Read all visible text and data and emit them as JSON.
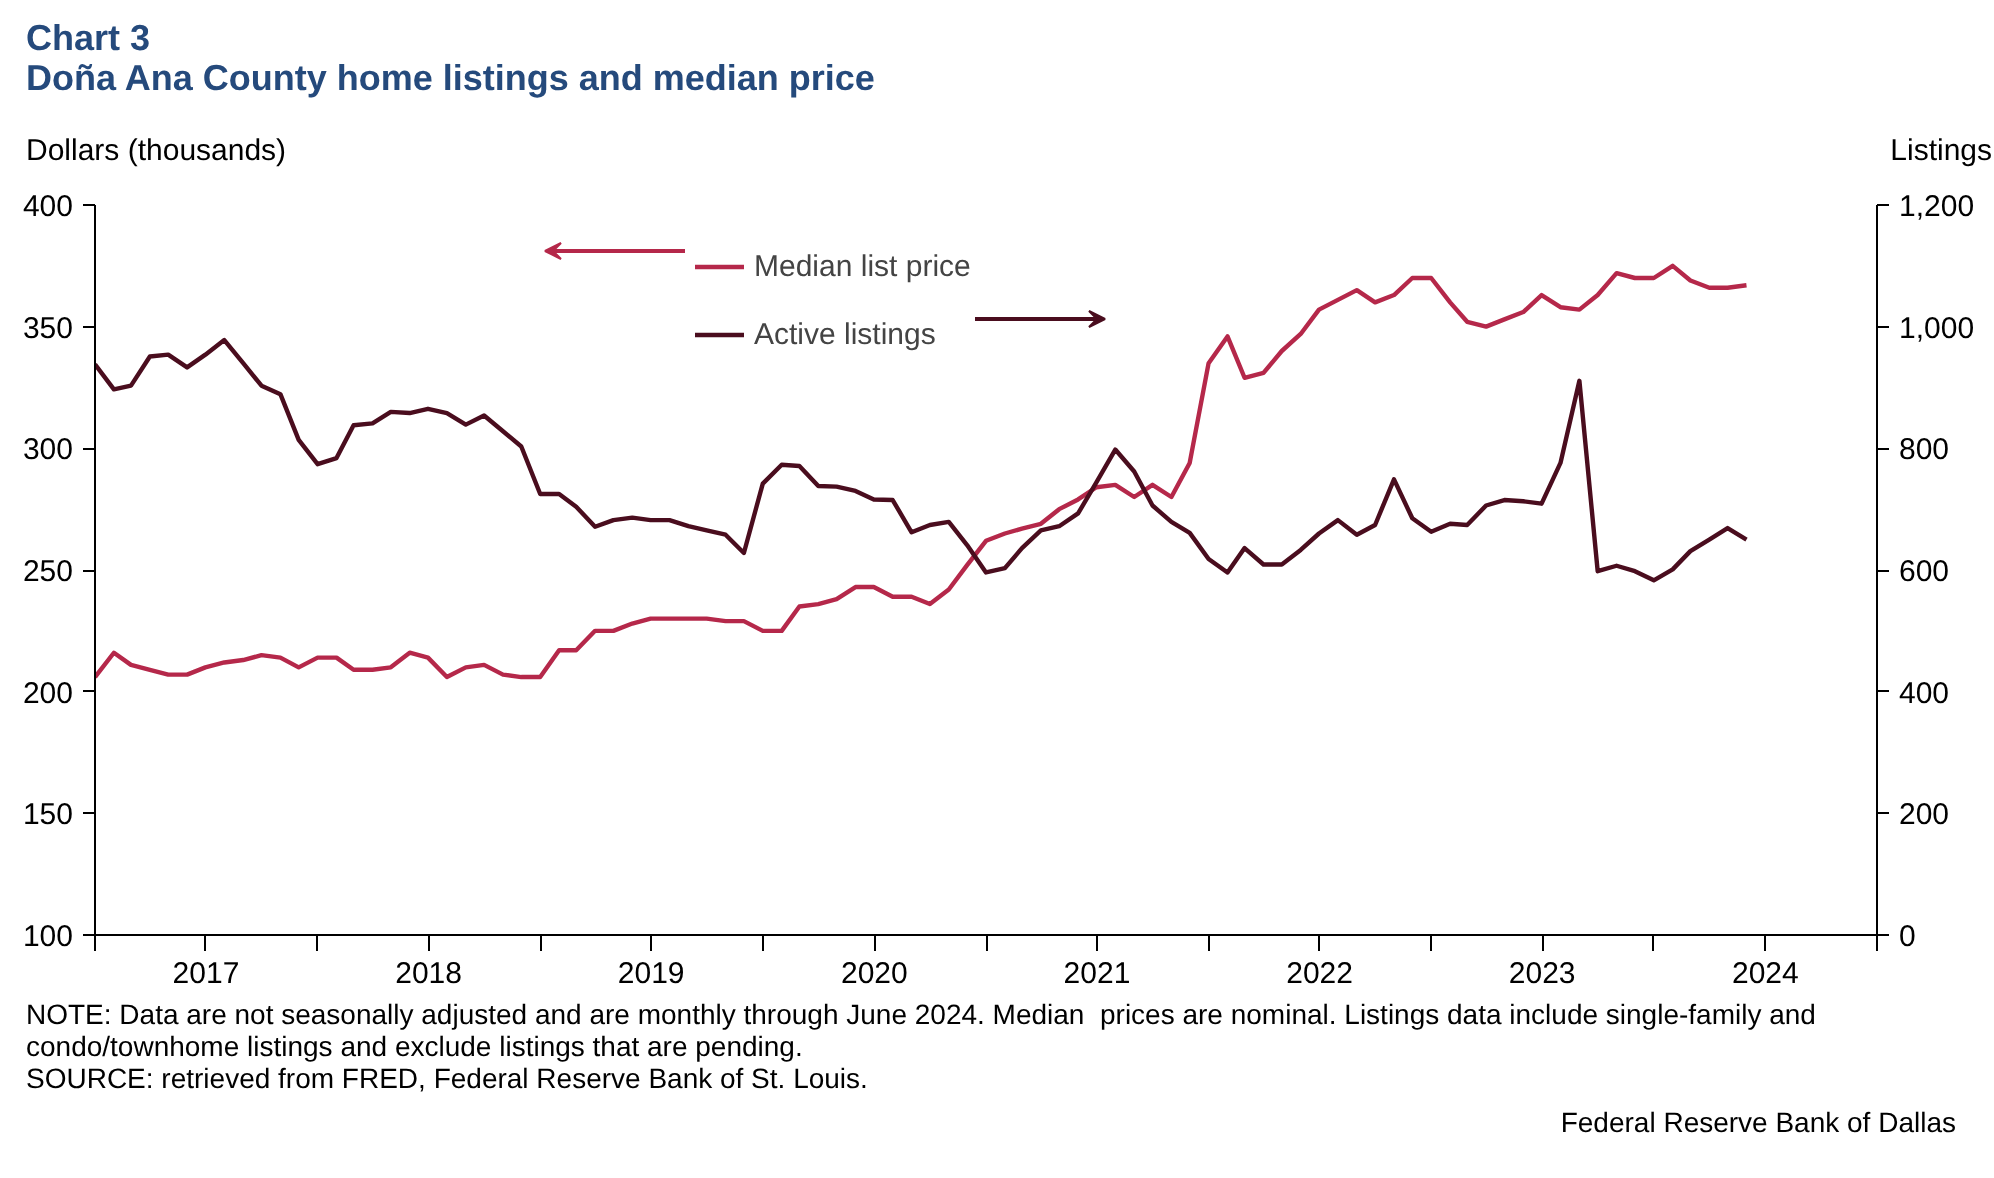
{
  "chart_data": {
    "type": "line",
    "title": "Chart 3",
    "subtitle": "Doña Ana County home listings and median price",
    "ylabel": "Dollars (thousands)",
    "y2label": "Listings",
    "x": [
      "2017-01",
      "2017-02",
      "2017-03",
      "2017-04",
      "2017-05",
      "2017-06",
      "2017-07",
      "2017-08",
      "2017-09",
      "2017-10",
      "2017-11",
      "2017-12",
      "2018-01",
      "2018-02",
      "2018-03",
      "2018-04",
      "2018-05",
      "2018-06",
      "2018-07",
      "2018-08",
      "2018-09",
      "2018-10",
      "2018-11",
      "2018-12",
      "2019-01",
      "2019-02",
      "2019-03",
      "2019-04",
      "2019-05",
      "2019-06",
      "2019-07",
      "2019-08",
      "2019-09",
      "2019-10",
      "2019-11",
      "2019-12",
      "2020-01",
      "2020-02",
      "2020-03",
      "2020-04",
      "2020-05",
      "2020-06",
      "2020-07",
      "2020-08",
      "2020-09",
      "2020-10",
      "2020-11",
      "2020-12",
      "2021-01",
      "2021-02",
      "2021-03",
      "2021-04",
      "2021-05",
      "2021-06",
      "2021-07",
      "2021-08",
      "2021-09",
      "2021-10",
      "2021-11",
      "2021-12",
      "2022-01",
      "2022-02",
      "2022-03",
      "2022-04",
      "2022-05",
      "2022-06",
      "2022-07",
      "2022-08",
      "2022-09",
      "2022-10",
      "2022-11",
      "2022-12",
      "2023-01",
      "2023-02",
      "2023-03",
      "2023-04",
      "2023-05",
      "2023-06",
      "2023-07",
      "2023-08",
      "2023-09",
      "2023-10",
      "2023-11",
      "2023-12",
      "2024-01",
      "2024-02",
      "2024-03",
      "2024-04",
      "2024-05",
      "2024-06"
    ],
    "series": [
      {
        "name": "Median list price",
        "color": "#b5284a",
        "values": [
          206,
          216,
          211,
          209,
          207,
          207,
          210,
          212,
          213,
          215,
          214,
          210,
          214,
          214,
          209,
          209,
          210,
          216,
          214,
          206,
          210,
          211,
          207,
          206,
          206,
          217,
          217,
          225,
          225,
          228,
          230,
          230,
          230,
          230,
          229,
          229,
          225,
          225,
          235,
          236,
          238,
          243,
          243,
          239,
          239,
          236,
          242,
          252,
          262,
          265,
          267,
          269,
          275,
          279,
          284,
          285,
          280,
          285,
          280,
          294,
          335,
          346,
          329,
          331,
          340,
          347,
          357,
          361,
          365,
          360,
          363,
          370,
          370,
          360,
          352,
          350,
          353,
          356,
          363,
          358,
          357,
          363,
          372,
          370,
          370,
          375,
          369,
          366,
          366,
          367
        ]
      },
      {
        "name": "Active listings",
        "color": "#4a0d1e",
        "axis": "y2",
        "values": [
          938,
          897,
          903,
          951,
          954,
          933,
          954,
          978,
          940,
          903,
          889,
          814,
          774,
          784,
          838,
          841,
          860,
          858,
          865,
          858,
          839,
          854,
          828,
          803,
          725,
          725,
          704,
          671,
          682,
          686,
          682,
          682,
          672,
          665,
          658,
          628,
          742,
          773,
          771,
          738,
          737,
          730,
          716,
          715,
          662,
          674,
          679,
          641,
          596,
          603,
          636,
          665,
          672,
          693,
          744,
          798,
          762,
          706,
          679,
          661,
          618,
          596,
          636,
          609,
          609,
          633,
          660,
          682,
          658,
          674,
          749,
          685,
          663,
          676,
          674,
          706,
          715,
          713,
          709,
          776,
          911,
          598,
          607,
          598,
          583,
          601,
          631,
          650,
          669,
          650
        ]
      }
    ],
    "xlim": [
      "2017-01-01",
      "2025-01-01"
    ],
    "xticks": [
      {
        "value": "2017-01-01",
        "label": null
      },
      {
        "value": "2017-07-02",
        "label": "2017"
      },
      {
        "value": "2018-01-01",
        "label": null
      },
      {
        "value": "2018-07-02",
        "label": "2018"
      },
      {
        "value": "2019-01-01",
        "label": null
      },
      {
        "value": "2019-07-02",
        "label": "2019"
      },
      {
        "value": "2020-01-01",
        "label": null
      },
      {
        "value": "2020-07-02",
        "label": "2020"
      },
      {
        "value": "2021-01-01",
        "label": null
      },
      {
        "value": "2021-07-02",
        "label": "2021"
      },
      {
        "value": "2022-01-01",
        "label": null
      },
      {
        "value": "2022-07-02",
        "label": "2022"
      },
      {
        "value": "2023-01-01",
        "label": null
      },
      {
        "value": "2023-07-02",
        "label": "2023"
      },
      {
        "value": "2024-01-01",
        "label": null
      },
      {
        "value": "2024-07-02",
        "label": "2024"
      },
      {
        "value": "2025-01-01",
        "label": null
      }
    ],
    "ylim": [
      100,
      400
    ],
    "yticks": [
      100,
      150,
      200,
      250,
      300,
      350,
      400
    ],
    "y2lim": [
      0,
      1200
    ],
    "y2ticks": [
      0,
      200,
      400,
      600,
      800,
      {
        "value": 1000,
        "label": "1,000"
      },
      {
        "value": 1200,
        "label": "1,200"
      }
    ],
    "grid": false,
    "legend": "top",
    "annotations": [
      "NOTE: Data are not seasonally adjusted and are monthly through June 2024. Median  prices are nominal. Listings data include single-family and condo/townhome listings and exclude listings that are pending.",
      "SOURCE: retrieved from FRED, Federal Reserve Bank of St. Louis.",
      "Federal Reserve Bank of Dallas"
    ]
  }
}
